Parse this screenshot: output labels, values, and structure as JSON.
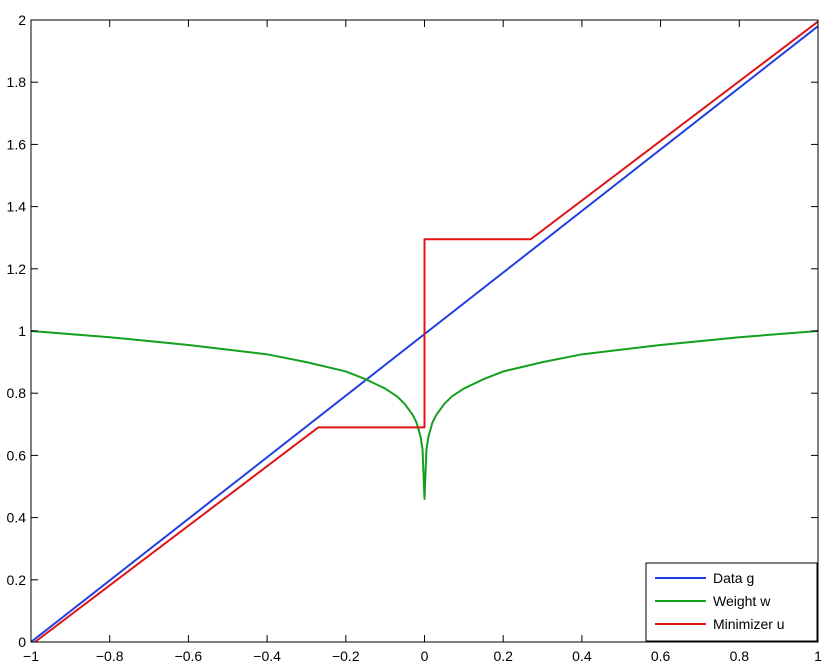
{
  "chart_data": {
    "type": "line",
    "title": "",
    "xlabel": "",
    "ylabel": "",
    "xlim": [
      -1,
      1
    ],
    "ylim": [
      0,
      2
    ],
    "xticks": [
      "−1",
      "−0.8",
      "−0.6",
      "−0.4",
      "−0.2",
      "0",
      "0.2",
      "0.4",
      "0.6",
      "0.8",
      "1"
    ],
    "xtick_values": [
      -1,
      -0.8,
      -0.6,
      -0.4,
      -0.2,
      0,
      0.2,
      0.4,
      0.6,
      0.8,
      1
    ],
    "yticks": [
      "0",
      "0.2",
      "0.4",
      "0.6",
      "0.8",
      "1",
      "1.2",
      "1.4",
      "1.6",
      "1.8",
      "2"
    ],
    "ytick_values": [
      0,
      0.2,
      0.4,
      0.6,
      0.8,
      1,
      1.2,
      1.4,
      1.6,
      1.8,
      2
    ],
    "grid": false,
    "legend_position": "bottom-right",
    "series": [
      {
        "name": "Data g",
        "color": "#1f3fe0",
        "x": [
          -1,
          1
        ],
        "y": [
          0,
          1.98
        ]
      },
      {
        "name": "Weight w",
        "color": "#14a01e",
        "x": [
          -1,
          -0.8,
          -0.6,
          -0.4,
          -0.3,
          -0.2,
          -0.15,
          -0.1,
          -0.07,
          -0.05,
          -0.03,
          -0.02,
          -0.01,
          -0.005,
          0,
          0.005,
          0.01,
          0.02,
          0.03,
          0.05,
          0.07,
          0.1,
          0.15,
          0.2,
          0.3,
          0.4,
          0.6,
          0.8,
          1
        ],
        "y": [
          1.0,
          0.98,
          0.955,
          0.925,
          0.9,
          0.87,
          0.845,
          0.815,
          0.79,
          0.765,
          0.73,
          0.705,
          0.66,
          0.62,
          0.46,
          0.62,
          0.66,
          0.705,
          0.73,
          0.765,
          0.79,
          0.815,
          0.845,
          0.87,
          0.9,
          0.925,
          0.955,
          0.98,
          1.0
        ]
      },
      {
        "name": "Minimizer u",
        "color": "#e01414",
        "x": [
          -0.99,
          -0.27,
          0,
          0,
          0.27,
          1
        ],
        "y": [
          0,
          0.69,
          0.69,
          1.295,
          1.295,
          1.995
        ]
      }
    ]
  }
}
